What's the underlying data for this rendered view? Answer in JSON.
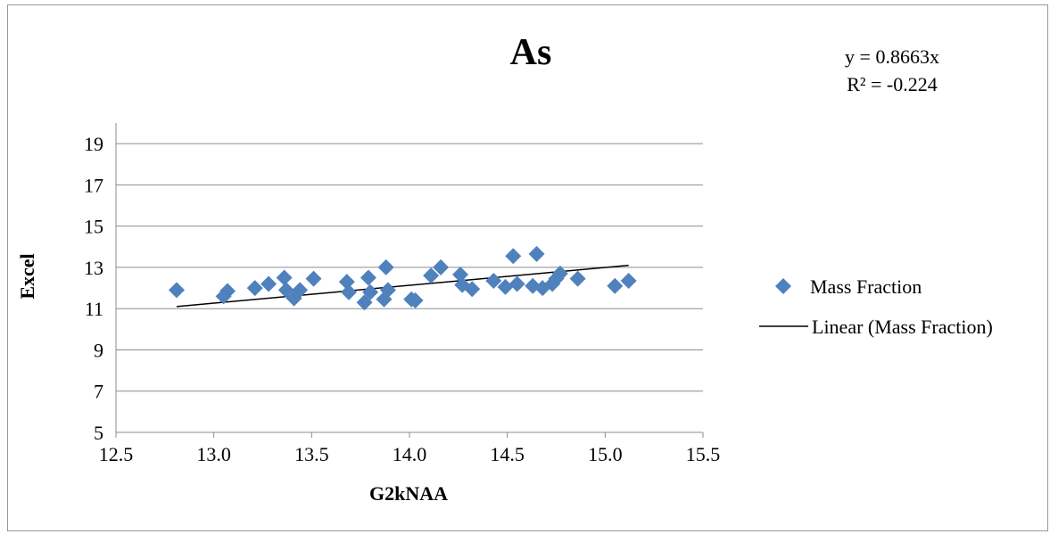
{
  "chart_data": {
    "type": "scatter",
    "title": "As",
    "xlabel": "G2kNAA",
    "ylabel": "Excel",
    "xlim": [
      12.5,
      15.5
    ],
    "ylim": [
      5,
      20
    ],
    "x_ticks": [
      12.5,
      13.0,
      13.5,
      14.0,
      14.5,
      15.0,
      15.5
    ],
    "x_tick_labels": [
      "12.5",
      "13.0",
      "13.5",
      "14.0",
      "14.5",
      "15.0",
      "15.5"
    ],
    "y_ticks": [
      5,
      7,
      9,
      11,
      13,
      15,
      17,
      19
    ],
    "y_tick_labels": [
      "5",
      "7",
      "9",
      "11",
      "13",
      "15",
      "17",
      "19"
    ],
    "grid": "horizontal",
    "legend_position": "right",
    "equation": "y = 0.8663x",
    "r_squared": "R² = -0.224",
    "series": [
      {
        "name": "Mass Fraction",
        "marker": "diamond",
        "color": "#4F81BD",
        "x": [
          12.81,
          13.05,
          13.07,
          13.21,
          13.28,
          13.36,
          13.37,
          13.41,
          13.44,
          13.51,
          13.68,
          13.69,
          13.77,
          13.79,
          13.8,
          13.87,
          13.88,
          13.89,
          14.01,
          14.03,
          14.11,
          14.16,
          14.26,
          14.27,
          14.32,
          14.43,
          14.49,
          14.53,
          14.55,
          14.63,
          14.65,
          14.68,
          14.73,
          14.75,
          14.77,
          14.86,
          15.05,
          15.12
        ],
        "y": [
          11.9,
          11.6,
          11.85,
          12.0,
          12.2,
          12.5,
          11.9,
          11.5,
          11.9,
          12.45,
          12.3,
          11.8,
          11.3,
          12.5,
          11.8,
          11.45,
          13.0,
          11.9,
          11.45,
          11.4,
          12.6,
          13.0,
          12.65,
          12.15,
          11.95,
          12.35,
          12.05,
          13.55,
          12.2,
          12.1,
          13.65,
          12.0,
          12.2,
          12.45,
          12.7,
          12.45,
          12.1,
          12.35
        ]
      },
      {
        "name": "Linear (Mass Fraction)",
        "type": "line",
        "color": "#000000",
        "x": [
          12.81,
          15.12
        ],
        "y": [
          11.1,
          13.1
        ]
      }
    ]
  }
}
